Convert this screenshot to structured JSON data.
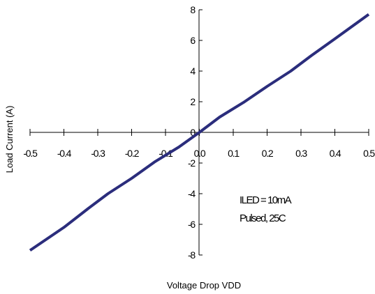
{
  "chart_data": {
    "type": "line",
    "title": "",
    "xlabel": "Voltage Drop VDD",
    "ylabel": "Load Current (A)",
    "xlim": [
      -0.5,
      0.5
    ],
    "ylim": [
      -8,
      8
    ],
    "x_ticks": [
      "-0.5",
      "-0.4",
      "-0.3",
      "-0.2",
      "-0.1",
      "0.0",
      "0.1",
      "0.2",
      "0.3",
      "0.4",
      "0.5"
    ],
    "y_ticks": [
      "-8",
      "-6",
      "-4",
      "-2",
      "0",
      "2",
      "4",
      "6",
      "8"
    ],
    "grid": false,
    "legend": "none",
    "series": [
      {
        "color": "#2b2d7c",
        "x": [
          -0.5,
          -0.4,
          -0.33,
          -0.27,
          -0.2,
          -0.13,
          -0.06,
          0.0,
          0.06,
          0.13,
          0.2,
          0.27,
          0.33,
          0.4,
          0.5
        ],
        "y": [
          -7.7,
          -6.2,
          -5.0,
          -4.0,
          -3.0,
          -1.9,
          -0.95,
          0.0,
          1.0,
          1.95,
          3.0,
          4.0,
          5.0,
          6.1,
          7.7
        ]
      }
    ],
    "annotations": [
      "ILED = 10mA",
      "Pulsed, 25C"
    ]
  }
}
